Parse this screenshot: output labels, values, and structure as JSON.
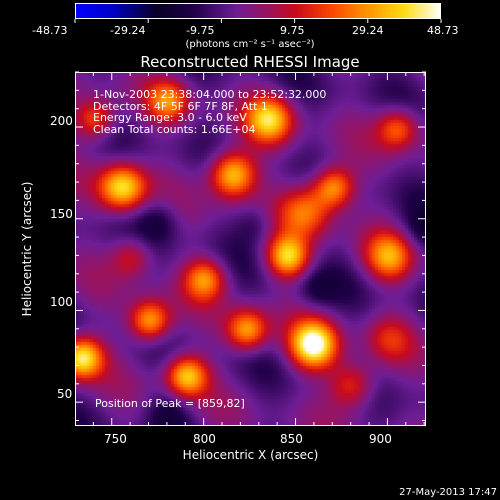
{
  "colorbar": {
    "ticks": [
      "-48.73",
      "-29.24",
      "-9.75",
      "9.75",
      "29.24",
      "48.73"
    ],
    "units": "(photons cm⁻² s⁻¹ asec⁻²)",
    "min": -48.73,
    "max": 48.73
  },
  "annotation": {
    "time_range": "1-Nov-2003 23:38:04.000 to 23:52:32.000",
    "detectors": "Detectors: 4F 5F 6F 7F 8F, Att 1",
    "energy": "Energy Range: 3.0 - 6.0 keV",
    "clean": "Clean     Total counts: 1.66E+04",
    "peak": "Position of Peak = [859,82]"
  },
  "footer": {
    "timestamp": "27-May-2013 17:47"
  },
  "chart_data": {
    "type": "heatmap",
    "title": "Reconstructed RHESSI Image",
    "xlabel": "Heliocentric X (arcsec)",
    "ylabel": "Heliocentric Y (arcsec)",
    "xlim": [
      730,
      921
    ],
    "ylim": [
      37,
      230
    ],
    "x_ticks": [
      750,
      800,
      850,
      900
    ],
    "y_ticks": [
      50,
      100,
      150,
      200
    ],
    "x_tick_labels": [
      "750",
      "800",
      "850",
      "900"
    ],
    "y_tick_labels": [
      "50",
      "100",
      "150",
      "200"
    ],
    "colorscale": "red-temperature (blue-black-red-yellow-white)",
    "peak_position": [
      859,
      82
    ],
    "peak_value": 48.73
  }
}
